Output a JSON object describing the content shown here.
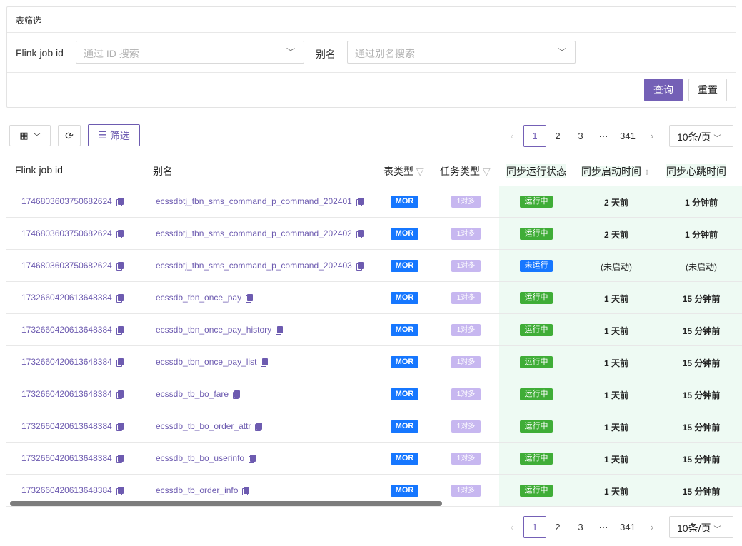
{
  "filter": {
    "title": "表筛选",
    "job_label": "Flink job id",
    "job_placeholder": "通过 ID 搜索",
    "alias_label": "别名",
    "alias_placeholder": "通过别名搜索",
    "query": "查询",
    "reset": "重置"
  },
  "toolbar": {
    "filter": "筛选"
  },
  "pagination": {
    "pages": [
      "1",
      "2",
      "3",
      "···",
      "341"
    ],
    "current": "1",
    "page_size": "10条/页"
  },
  "columns": [
    "Flink job id",
    "别名",
    "表类型",
    "任务类型",
    "同步运行状态",
    "同步启动时间",
    "同步心跳时间"
  ],
  "colors": {
    "accent": "#7460b6",
    "running": "#3fad37",
    "stopped": "#1677ff",
    "mor": "#1677ff",
    "task": "#c7b7f0"
  },
  "rows": [
    {
      "id": "1746803603750682624",
      "alias": "ecssdbtj_tbn_sms_command_p_command_202401",
      "type": "MOR",
      "task": "1对多",
      "status": "运行中",
      "start": "2 天前",
      "beat": "1 分钟前"
    },
    {
      "id": "1746803603750682624",
      "alias": "ecssdbtj_tbn_sms_command_p_command_202402",
      "type": "MOR",
      "task": "1对多",
      "status": "运行中",
      "start": "2 天前",
      "beat": "1 分钟前"
    },
    {
      "id": "1746803603750682624",
      "alias": "ecssdbtj_tbn_sms_command_p_command_202403",
      "type": "MOR",
      "task": "1对多",
      "status": "未运行",
      "start": "(未启动)",
      "beat": "(未启动)"
    },
    {
      "id": "1732660420613648384",
      "alias": "ecssdb_tbn_once_pay",
      "type": "MOR",
      "task": "1对多",
      "status": "运行中",
      "start": "1 天前",
      "beat": "15 分钟前"
    },
    {
      "id": "1732660420613648384",
      "alias": "ecssdb_tbn_once_pay_history",
      "type": "MOR",
      "task": "1对多",
      "status": "运行中",
      "start": "1 天前",
      "beat": "15 分钟前"
    },
    {
      "id": "1732660420613648384",
      "alias": "ecssdb_tbn_once_pay_list",
      "type": "MOR",
      "task": "1对多",
      "status": "运行中",
      "start": "1 天前",
      "beat": "15 分钟前"
    },
    {
      "id": "1732660420613648384",
      "alias": "ecssdb_tb_bo_fare",
      "type": "MOR",
      "task": "1对多",
      "status": "运行中",
      "start": "1 天前",
      "beat": "15 分钟前"
    },
    {
      "id": "1732660420613648384",
      "alias": "ecssdb_tb_bo_order_attr",
      "type": "MOR",
      "task": "1对多",
      "status": "运行中",
      "start": "1 天前",
      "beat": "15 分钟前"
    },
    {
      "id": "1732660420613648384",
      "alias": "ecssdb_tb_bo_userinfo",
      "type": "MOR",
      "task": "1对多",
      "status": "运行中",
      "start": "1 天前",
      "beat": "15 分钟前"
    },
    {
      "id": "1732660420613648384",
      "alias": "ecssdb_tb_order_info",
      "type": "MOR",
      "task": "1对多",
      "status": "运行中",
      "start": "1 天前",
      "beat": "15 分钟前"
    }
  ]
}
